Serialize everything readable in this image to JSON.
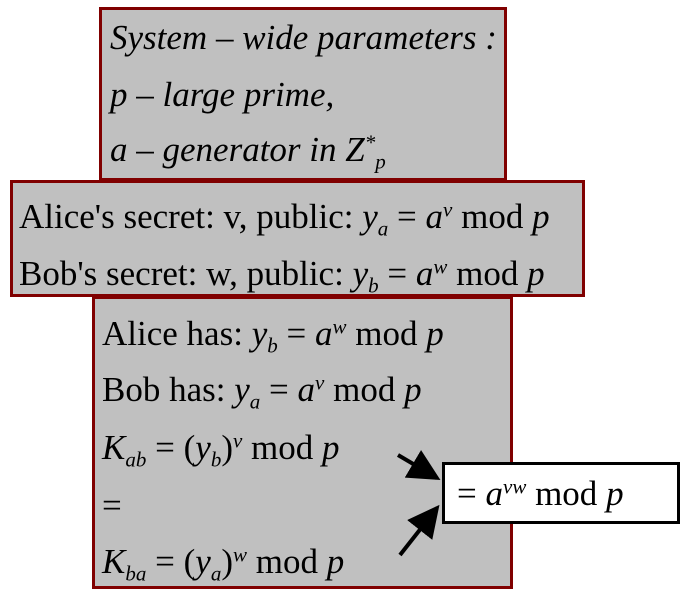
{
  "params": {
    "title": "System – wide parameters :",
    "p_line": "p – large prime,",
    "a_line_pre": "a – generator in Z",
    "a_line_sup": "*",
    "a_line_sub": "p"
  },
  "keys": {
    "alice_label": "Alice's secret: v,  public:",
    "bob_label": "Bob's secret: w,  public:",
    "y": "y",
    "eq": "=",
    "a": "a",
    "mod": "mod",
    "p": "p",
    "sub_a": "a",
    "sub_b": "b",
    "exp_v": "v",
    "exp_w": "w"
  },
  "exchange": {
    "alice_has": "Alice has:",
    "bob_has": "Bob has:",
    "K": "K",
    "sub_ab": "ab",
    "sub_ba": "ba",
    "equals": "="
  },
  "result": {
    "eq": "=",
    "a": "a",
    "exp_vw": "vw",
    "mod": "mod",
    "p": "p"
  }
}
